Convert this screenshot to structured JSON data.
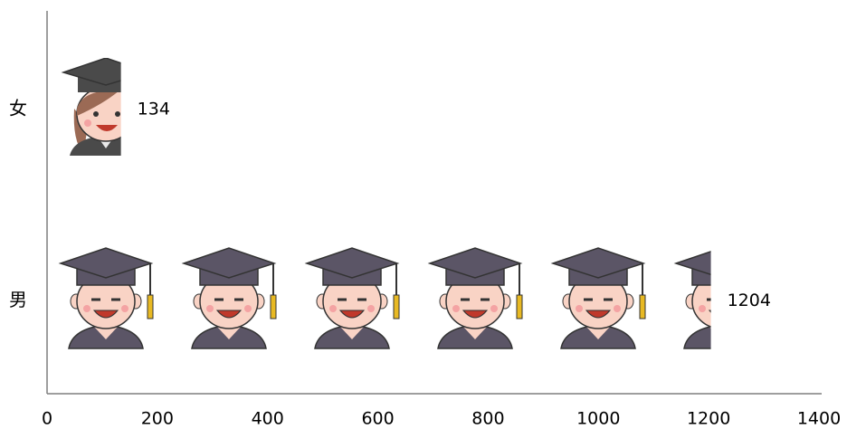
{
  "chart_data": {
    "type": "pictograph",
    "categories": [
      "女",
      "男"
    ],
    "values": [
      134,
      1204
    ],
    "xlim": [
      0,
      1400
    ],
    "xticks": [
      0,
      200,
      400,
      600,
      800,
      1000,
      1200,
      1400
    ]
  }
}
